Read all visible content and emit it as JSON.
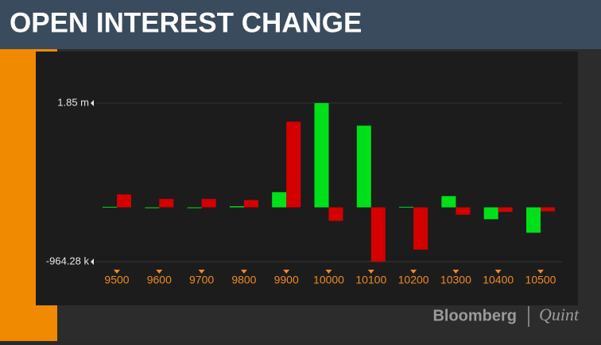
{
  "chart_data": {
    "type": "bar",
    "title": "OPEN INTEREST CHANGE",
    "categories": [
      "9500",
      "9600",
      "9700",
      "9800",
      "9900",
      "10000",
      "10100",
      "10200",
      "10300",
      "10400",
      "10500"
    ],
    "series": [
      {
        "color": "#00e01a",
        "values": [
          10000,
          0,
          0,
          20000,
          270000,
          1850000,
          1450000,
          10000,
          200000,
          -210000,
          -450000
        ]
      },
      {
        "color": "#d40000",
        "values": [
          230000,
          150000,
          150000,
          130000,
          1520000,
          -240000,
          -960000,
          -750000,
          -130000,
          -80000,
          -70000
        ]
      }
    ],
    "ylim": [
      -964280,
      1850000
    ],
    "yticks": [
      {
        "value": -964280,
        "label": "-964.28 k"
      },
      {
        "value": 1850000,
        "label": "1.85 m"
      }
    ],
    "grid": true,
    "watermark": {
      "brand": "Bloomberg",
      "partner": "Quint"
    }
  }
}
